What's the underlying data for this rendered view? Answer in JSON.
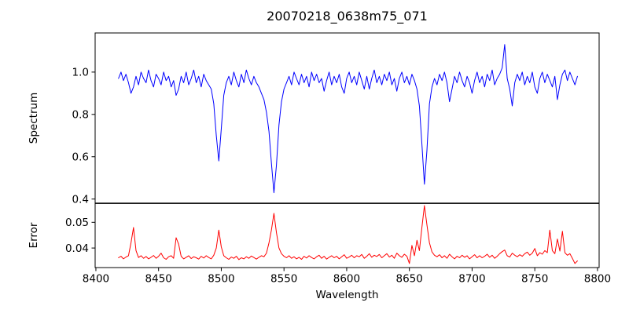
{
  "figure": {
    "background": "#ffffff",
    "frame_color": "#000000"
  },
  "chart_data": {
    "type": "line",
    "title": "20070218_0638m75_071",
    "xlabel": "Wavelength",
    "grid": false,
    "legend": "none",
    "x_start": 8418,
    "x_step": 2,
    "xlim": [
      8399.4,
      8801.3
    ],
    "x_tick_values": [
      8400,
      8450,
      8500,
      8550,
      8600,
      8650,
      8700,
      8750,
      8800
    ],
    "x_tick_labels": [
      "8400",
      "8450",
      "8500",
      "8550",
      "8600",
      "8650",
      "8700",
      "8750",
      "8800"
    ],
    "panels": [
      {
        "name": "spectrum",
        "ylabel": "Spectrum",
        "color": "#0000ff",
        "ylim": [
          0.381,
          1.185
        ],
        "y_tick_values": [
          1.0,
          0.8,
          0.6,
          0.4
        ],
        "y_tick_labels": [
          "1.0",
          "0.8",
          "0.6",
          "0.4"
        ],
        "features": [
          "CaII 8498 dip to 0.58",
          "CaII 8542 dip to 0.43",
          "CaII 8662 dip to 0.47",
          "emission spike 8726 to 1.13"
        ],
        "values": [
          0.97,
          1.0,
          0.96,
          0.99,
          0.95,
          0.9,
          0.93,
          0.98,
          0.94,
          1.0,
          0.97,
          0.95,
          1.01,
          0.96,
          0.93,
          0.99,
          0.97,
          0.94,
          1.0,
          0.96,
          0.98,
          0.93,
          0.96,
          0.89,
          0.92,
          0.98,
          0.95,
          1.0,
          0.94,
          0.97,
          1.01,
          0.95,
          0.98,
          0.93,
          0.99,
          0.96,
          0.94,
          0.92,
          0.85,
          0.7,
          0.58,
          0.73,
          0.89,
          0.95,
          0.98,
          0.94,
          1.0,
          0.96,
          0.93,
          0.99,
          0.95,
          1.01,
          0.97,
          0.94,
          0.98,
          0.95,
          0.93,
          0.9,
          0.87,
          0.81,
          0.72,
          0.57,
          0.43,
          0.56,
          0.75,
          0.86,
          0.92,
          0.95,
          0.98,
          0.94,
          1.0,
          0.97,
          0.94,
          0.99,
          0.95,
          0.98,
          0.93,
          1.0,
          0.96,
          0.99,
          0.95,
          0.97,
          0.91,
          0.96,
          1.0,
          0.94,
          0.98,
          0.95,
          0.99,
          0.93,
          0.9,
          0.97,
          1.0,
          0.95,
          0.98,
          0.94,
          1.0,
          0.96,
          0.92,
          0.98,
          0.92,
          0.97,
          1.01,
          0.95,
          0.98,
          0.94,
          0.99,
          0.96,
          1.0,
          0.94,
          0.97,
          0.91,
          0.97,
          1.0,
          0.95,
          0.98,
          0.94,
          0.99,
          0.96,
          0.92,
          0.84,
          0.66,
          0.47,
          0.63,
          0.85,
          0.93,
          0.97,
          0.94,
          0.99,
          0.96,
          1.0,
          0.95,
          0.86,
          0.92,
          0.98,
          0.95,
          1.0,
          0.96,
          0.93,
          0.98,
          0.95,
          0.9,
          0.96,
          1.0,
          0.95,
          0.98,
          0.93,
          0.99,
          0.96,
          1.01,
          0.94,
          0.97,
          0.99,
          1.02,
          1.13,
          0.97,
          0.92,
          0.84,
          0.95,
          0.99,
          0.96,
          1.0,
          0.94,
          0.98,
          0.95,
          1.0,
          0.93,
          0.9,
          0.97,
          1.0,
          0.95,
          0.99,
          0.96,
          0.93,
          0.98,
          0.87,
          0.94,
          0.99,
          1.01,
          0.96,
          1.0,
          0.97,
          0.94,
          0.98
        ]
      },
      {
        "name": "error",
        "ylabel": "Error",
        "color": "#ff0000",
        "ylim": [
          0.0324,
          0.0573
        ],
        "y_tick_values": [
          0.05,
          0.04
        ],
        "y_tick_labels": [
          "0.05",
          "0.04"
        ],
        "features": [
          "spike 8430 to 0.048",
          "spike 8498 to 0.047",
          "spike 8542 to 0.0535",
          "spike 8662 to 0.0565",
          "spikes 8762-8772 to 0.047"
        ],
        "values": [
          0.0362,
          0.0368,
          0.0358,
          0.0365,
          0.037,
          0.042,
          0.048,
          0.039,
          0.0363,
          0.037,
          0.036,
          0.0367,
          0.0358,
          0.0364,
          0.0371,
          0.036,
          0.0368,
          0.038,
          0.0362,
          0.0356,
          0.0366,
          0.037,
          0.036,
          0.044,
          0.0415,
          0.0368,
          0.0358,
          0.0364,
          0.037,
          0.0359,
          0.0366,
          0.0362,
          0.0357,
          0.0368,
          0.0361,
          0.037,
          0.0363,
          0.0358,
          0.0372,
          0.04,
          0.047,
          0.0405,
          0.037,
          0.0362,
          0.0356,
          0.0365,
          0.036,
          0.0368,
          0.0355,
          0.0362,
          0.0358,
          0.0366,
          0.036,
          0.0369,
          0.0363,
          0.0357,
          0.0364,
          0.037,
          0.0366,
          0.038,
          0.042,
          0.047,
          0.0535,
          0.046,
          0.04,
          0.0378,
          0.0368,
          0.0362,
          0.037,
          0.036,
          0.0366,
          0.0358,
          0.0364,
          0.0356,
          0.0368,
          0.0361,
          0.037,
          0.0363,
          0.0358,
          0.0366,
          0.0372,
          0.036,
          0.0368,
          0.0357,
          0.0364,
          0.037,
          0.0362,
          0.0368,
          0.0358,
          0.0366,
          0.0374,
          0.036,
          0.0365,
          0.0372,
          0.0362,
          0.037,
          0.0366,
          0.0375,
          0.036,
          0.0368,
          0.0378,
          0.0364,
          0.0372,
          0.0367,
          0.0375,
          0.0362,
          0.037,
          0.0378,
          0.0365,
          0.0372,
          0.036,
          0.038,
          0.037,
          0.0364,
          0.0376,
          0.0368,
          0.034,
          0.041,
          0.037,
          0.043,
          0.039,
          0.048,
          0.0565,
          0.049,
          0.042,
          0.0385,
          0.0372,
          0.0366,
          0.0374,
          0.0362,
          0.037,
          0.036,
          0.0376,
          0.0366,
          0.0358,
          0.0368,
          0.0362,
          0.0372,
          0.0364,
          0.037,
          0.0358,
          0.0366,
          0.0374,
          0.0362,
          0.037,
          0.0362,
          0.0368,
          0.0376,
          0.0364,
          0.0372,
          0.036,
          0.0368,
          0.0378,
          0.0386,
          0.0392,
          0.037,
          0.0365,
          0.038,
          0.0372,
          0.0366,
          0.0374,
          0.0368,
          0.0378,
          0.0384,
          0.0372,
          0.038,
          0.0398,
          0.037,
          0.0382,
          0.0376,
          0.039,
          0.0382,
          0.047,
          0.039,
          0.0378,
          0.0435,
          0.0388,
          0.0465,
          0.0382,
          0.0372,
          0.0378,
          0.036,
          0.034,
          0.035
        ]
      }
    ]
  }
}
